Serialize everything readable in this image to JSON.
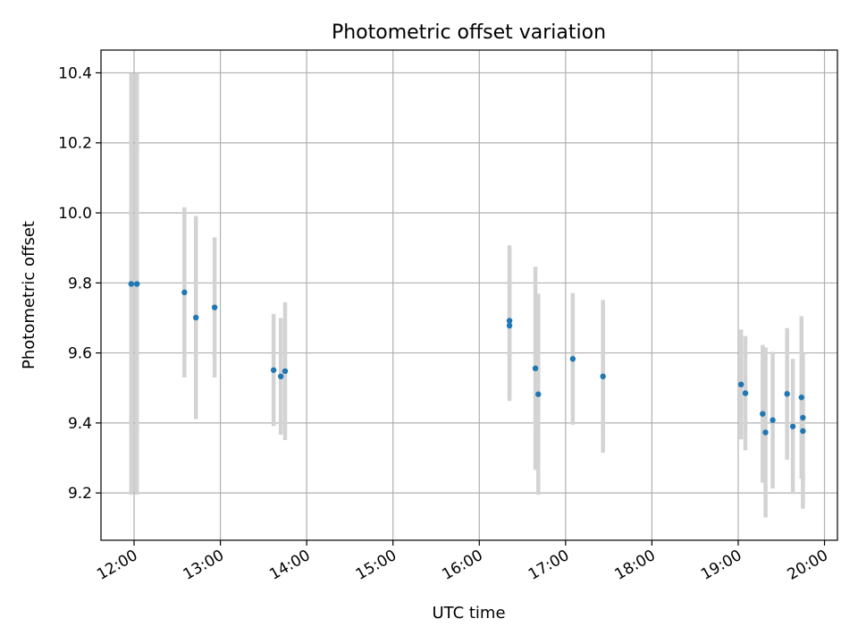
{
  "chart_data": {
    "type": "scatter",
    "title": "Photometric offset variation",
    "xlabel": "UTC time",
    "ylabel": "Photometric offset",
    "x_tick_labels": [
      "12:00",
      "13:00",
      "14:00",
      "15:00",
      "16:00",
      "17:00",
      "18:00",
      "19:00",
      "20:00"
    ],
    "y_tick_labels": [
      "9.2",
      "9.4",
      "9.6",
      "9.8",
      "10.0",
      "10.2",
      "10.4"
    ],
    "xlim": [
      "11:37",
      "20:09"
    ],
    "ylim": [
      9.065,
      10.465
    ],
    "grid": true,
    "point_color": "#1f77b4",
    "errorbar_color": "#d3d3d3",
    "points": [
      {
        "time": "11:58",
        "y": 9.797,
        "err": 0.602
      },
      {
        "time": "12:02",
        "y": 9.797,
        "err": 0.602
      },
      {
        "time": "12:35",
        "y": 9.773,
        "err": 0.243
      },
      {
        "time": "12:43",
        "y": 9.701,
        "err": 0.29
      },
      {
        "time": "12:56",
        "y": 9.73,
        "err": 0.2
      },
      {
        "time": "13:37",
        "y": 9.551,
        "err": 0.16
      },
      {
        "time": "13:42",
        "y": 9.533,
        "err": 0.167
      },
      {
        "time": "13:45",
        "y": 9.548,
        "err": 0.197
      },
      {
        "time": "16:21",
        "y": 9.692,
        "err": 0.215
      },
      {
        "time": "16:21",
        "y": 9.678,
        "err": 0.215
      },
      {
        "time": "16:39",
        "y": 9.556,
        "err": 0.29
      },
      {
        "time": "16:41",
        "y": 9.482,
        "err": 0.287
      },
      {
        "time": "17:05",
        "y": 9.583,
        "err": 0.188
      },
      {
        "time": "17:26",
        "y": 9.533,
        "err": 0.218
      },
      {
        "time": "19:02",
        "y": 9.51,
        "err": 0.157
      },
      {
        "time": "19:05",
        "y": 9.485,
        "err": 0.163
      },
      {
        "time": "19:17",
        "y": 9.426,
        "err": 0.197
      },
      {
        "time": "19:19",
        "y": 9.373,
        "err": 0.243
      },
      {
        "time": "19:24",
        "y": 9.408,
        "err": 0.195
      },
      {
        "time": "19:34",
        "y": 9.483,
        "err": 0.188
      },
      {
        "time": "19:38",
        "y": 9.39,
        "err": 0.193
      },
      {
        "time": "19:44",
        "y": 9.473,
        "err": 0.232
      },
      {
        "time": "19:45",
        "y": 9.415,
        "err": 0.185
      },
      {
        "time": "19:45",
        "y": 9.377,
        "err": 0.222
      }
    ]
  }
}
